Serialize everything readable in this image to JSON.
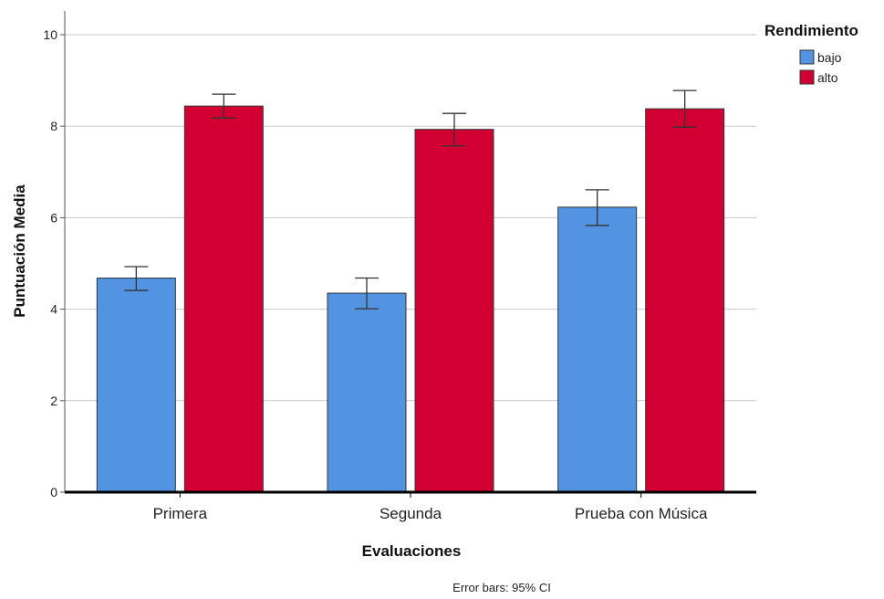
{
  "chart_data": {
    "type": "bar",
    "categories": [
      "Primera",
      "Segunda",
      "Prueba con Música"
    ],
    "series": [
      {
        "name": "bajo",
        "color": "#5294e2",
        "values": [
          4.68,
          4.35,
          6.23
        ],
        "ci_low": [
          4.41,
          4.01,
          5.83
        ],
        "ci_high": [
          4.93,
          4.68,
          6.61
        ]
      },
      {
        "name": "alto",
        "color": "#d20032",
        "values": [
          8.44,
          7.93,
          8.38
        ],
        "ci_low": [
          8.18,
          7.57,
          7.98
        ],
        "ci_high": [
          8.7,
          8.28,
          8.78
        ]
      }
    ],
    "xlabel": "Evaluaciones",
    "ylabel": "Puntuación Media",
    "ylim": [
      0,
      10
    ],
    "yticks": [
      0,
      2,
      4,
      6,
      8,
      10
    ],
    "grid": true,
    "legend": {
      "title": "Rendimiento",
      "position": "top-right",
      "entries": [
        "bajo",
        "alto"
      ]
    },
    "footnote": "Error bars: 95% CI"
  }
}
